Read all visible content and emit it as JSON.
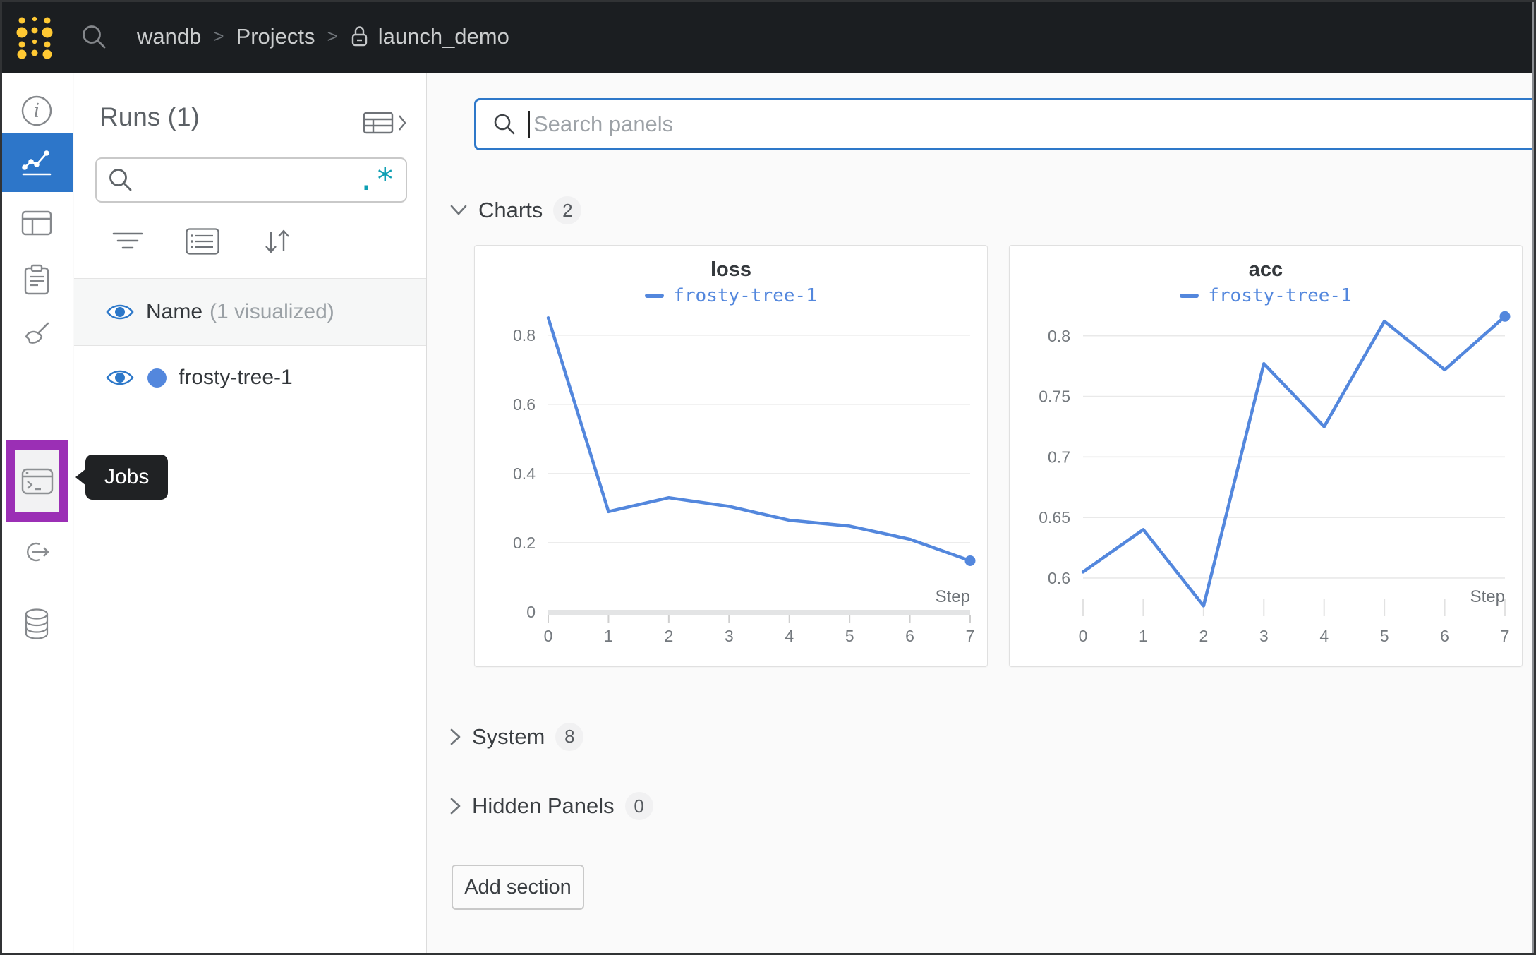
{
  "navbar": {
    "breadcrumb": {
      "items": [
        "wandb",
        "Projects",
        "launch_demo"
      ],
      "separator": ">"
    }
  },
  "sidebar": {
    "icons": [
      "info-icon",
      "line-chart-icon",
      "workspace-panels-icon",
      "reports-clipboard-icon",
      "sweeps-broom-icon",
      "jobs-terminal-icon",
      "launch-arrow-icon",
      "artifacts-database-icon"
    ],
    "active_item": "line-chart-icon",
    "highlighted_item": "jobs-terminal-icon"
  },
  "jobs_tooltip": {
    "label": "Jobs"
  },
  "runs_panel": {
    "title": "Runs (1)",
    "search_value": "",
    "regex_icon": ".*",
    "header_row": {
      "name": "Name",
      "suffix": "(1 visualized)"
    },
    "runs": [
      {
        "name": "frosty-tree-1",
        "color": "#5387dd",
        "visible": true
      }
    ]
  },
  "main": {
    "search": {
      "placeholder": "Search panels"
    },
    "sections": [
      {
        "label": "Charts",
        "count": "2",
        "expanded": true
      },
      {
        "label": "System",
        "count": "8",
        "expanded": false
      },
      {
        "label": "Hidden Panels",
        "count": "0",
        "expanded": false
      }
    ],
    "add_section_label": "Add section"
  },
  "chart_data": [
    {
      "type": "line",
      "title": "loss",
      "xlabel": "Step",
      "legend_position": "top-center",
      "grid": "horizontal",
      "xlim": [
        0,
        7
      ],
      "ylim": [
        0,
        0.875
      ],
      "xticks": [
        0,
        1,
        2,
        3,
        4,
        5,
        6,
        7
      ],
      "yticks": [
        0,
        0.2,
        0.4,
        0.6,
        0.8
      ],
      "ytick_labels": [
        "0",
        "0.2",
        "0.4",
        "0.6",
        "0.8"
      ],
      "baseline_at_zero": true,
      "series": [
        {
          "name": "frosty-tree-1",
          "color": "#5387dd",
          "x": [
            0,
            1,
            2,
            3,
            4,
            5,
            6,
            7
          ],
          "y": [
            0.85,
            0.29,
            0.33,
            0.305,
            0.265,
            0.248,
            0.21,
            0.148
          ]
        }
      ]
    },
    {
      "type": "line",
      "title": "acc",
      "xlabel": "Step",
      "legend_position": "top-center",
      "grid": "horizontal",
      "xlim": [
        0,
        7
      ],
      "ylim": [
        0.572,
        0.822
      ],
      "xticks": [
        0,
        1,
        2,
        3,
        4,
        5,
        6,
        7
      ],
      "yticks": [
        0.6,
        0.65,
        0.7,
        0.75,
        0.8
      ],
      "ytick_labels": [
        "0.6",
        "0.65",
        "0.7",
        "0.75",
        "0.8"
      ],
      "baseline_at_zero": false,
      "series": [
        {
          "name": "frosty-tree-1",
          "color": "#5387dd",
          "x": [
            0,
            1,
            2,
            3,
            4,
            5,
            6,
            7
          ],
          "y": [
            0.605,
            0.64,
            0.577,
            0.777,
            0.725,
            0.812,
            0.772,
            0.816
          ]
        }
      ]
    }
  ],
  "colors": {
    "navbar_bg": "#1b1e21",
    "logo_yellow": "#ffc933",
    "active_nav_blue": "#2d76c9",
    "jobs_highlight_purple": "#9b2fb5",
    "tooltip_bg": "#202224",
    "focus_border_blue": "#2e78c9",
    "regex_teal": "#0f9fb3",
    "run_blue": "#5387dd",
    "eye_blue": "#2d78c9"
  }
}
